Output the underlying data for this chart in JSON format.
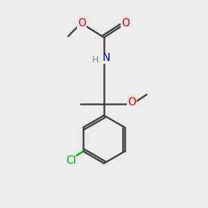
{
  "bg_color": "#ebebeb",
  "bond_color": "#404040",
  "bond_lw": 1.8,
  "atom_colors": {
    "O": "#ff0000",
    "N": "#0000cc",
    "Cl": "#00aa00",
    "H": "#808080",
    "C": "#404040"
  },
  "font_size_atom": 11,
  "font_size_small": 9,
  "xlim": [
    0,
    10
  ],
  "ylim": [
    0,
    10
  ]
}
